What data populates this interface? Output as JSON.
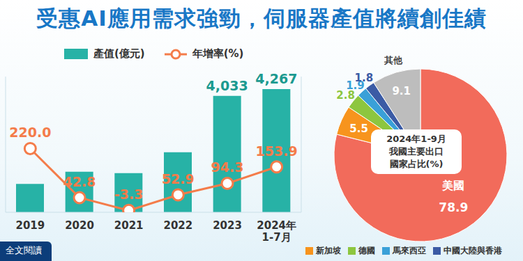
{
  "title": "受惠AI應用需求強勁，伺服器產值將續創佳績",
  "footer": "全文閱讀",
  "chart_data": [
    {
      "type": "bar",
      "categories": [
        "2019",
        "2020",
        "2021",
        "2022",
        "2023",
        "2024年\n1-7月"
      ],
      "series": [
        {
          "name": "產值(億元)",
          "type": "bar",
          "color": "#27b2a6",
          "values": [
            983,
            1404,
            1358,
            2076,
            4033,
            4267
          ],
          "value_labels": [
            null,
            null,
            null,
            null,
            "4,033",
            "4,267"
          ]
        },
        {
          "name": "年增率(%)",
          "type": "line",
          "axis": "y2",
          "color": "#f47c4a",
          "marker": "circle",
          "values": [
            220.0,
            42.8,
            -3.3,
            52.9,
            94.3,
            153.9
          ],
          "value_labels": [
            "220.0",
            "42.8",
            "-3.3",
            "52.9",
            "94.3",
            "153.9"
          ]
        }
      ],
      "ylim": [
        0,
        4700
      ],
      "yticks": [],
      "y2lim": [
        -10,
        480
      ],
      "y2ticks": [],
      "tick_labels": "x",
      "data_labels": true,
      "legend": "top left",
      "grid": false
    },
    {
      "type": "pie",
      "title": "2024年1-9月\n我國主要出口\n國家占比(%)",
      "categories": [
        "美國",
        "新加坡",
        "德國",
        "馬來西亞",
        "中國大陸與香港",
        "其他"
      ],
      "values": [
        78.9,
        5.5,
        2.8,
        1.9,
        1.8,
        9.1
      ],
      "colors": [
        "#f26b5b",
        "#f7941d",
        "#8dc63f",
        "#3aa0d8",
        "#3b5ba5",
        "#bdbdbd"
      ],
      "data_labels": true,
      "legend": "bottom"
    }
  ]
}
